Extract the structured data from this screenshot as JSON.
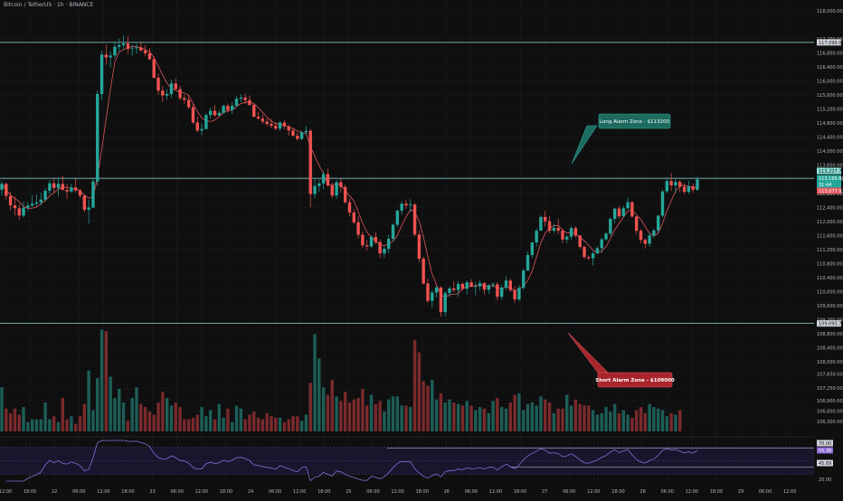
{
  "chart_data": {
    "type": "candlestick",
    "title": "Bitcoin / TetherUS · 1h · BINANCE",
    "colors": {
      "background": "#0f0f10",
      "up": "#26a69a",
      "down": "#ef5350",
      "volume_up": "#1d5e57",
      "volume_down": "#7a2a2c",
      "ma_line": "#e0565b",
      "zone_line": "#8fe0d8",
      "rsi_line": "#8c6bd8",
      "rsi_band": "#1b1630",
      "axis_text": "#b2b5be",
      "grid": "#1c1d22"
    },
    "price_axis": {
      "ylim": [
        106200,
        118100
      ],
      "ticks": [
        "118,000.00",
        "117,200.00",
        "116,800.00",
        "116,400.00",
        "116,000.00",
        "115,600.00",
        "115,200.00",
        "114,800.00",
        "114,400.00",
        "114,000.00",
        "113,600.00",
        "113,200.00",
        "112,800.00",
        "112,400.00",
        "112,000.00",
        "111,600.00",
        "111,200.00",
        "110,800.00",
        "110,400.00",
        "110,000.00",
        "109,600.00",
        "109,200.00",
        "108,800.00",
        "108,400.00",
        "108,000.00",
        "107,650.00",
        "107,250.00",
        "106,900.00",
        "106,600.00",
        "106,300.00"
      ]
    },
    "time_axis": {
      "ticks": [
        "12:00",
        "18:00",
        "22",
        "06:00",
        "12:00",
        "18:00",
        "23",
        "06:00",
        "12:00",
        "18:00",
        "24",
        "06:00",
        "12:00",
        "18:00",
        "25",
        "06:00",
        "12:00",
        "18:00",
        "26",
        "06:00",
        "12:00",
        "18:00",
        "27",
        "06:00",
        "12:00",
        "18:00",
        "28",
        "06:00",
        "12:00",
        "18:00",
        "29",
        "06:00",
        "12:00"
      ]
    },
    "zones": [
      {
        "price": 117099.01,
        "label": "117,099.01"
      },
      {
        "price": 113227.7,
        "label": "113,227.70"
      },
      {
        "price": 109093.76,
        "label": "109,093.76"
      }
    ],
    "price_labels": [
      {
        "price": 113227.7,
        "text": "113,227.70",
        "kind": "zone"
      },
      {
        "price": 112999,
        "text": "113,195.81",
        "kind": "last"
      },
      {
        "price": 112880,
        "text": "31:44",
        "kind": "timer"
      },
      {
        "price": 112677.97,
        "text": "113,077.97",
        "kind": "ma"
      }
    ],
    "annotations": [
      {
        "text": "Long Alarm Zone - $113200",
        "kind": "long"
      },
      {
        "text": "Short Alarm Zone - $109000",
        "kind": "short"
      }
    ],
    "ohlc": [
      [
        112901,
        113145,
        112733,
        113069
      ],
      [
        113069,
        113100,
        112620,
        112727
      ],
      [
        112727,
        112834,
        112317,
        112457
      ],
      [
        112457,
        112703,
        112168,
        112374
      ],
      [
        112374,
        112483,
        112040,
        112166
      ],
      [
        112166,
        112564,
        112106,
        112390
      ],
      [
        112390,
        112552,
        112286,
        112453
      ],
      [
        112453,
        112752,
        112413,
        112504
      ],
      [
        112504,
        112767,
        112440,
        112542
      ],
      [
        112542,
        112811,
        112445,
        112620
      ],
      [
        112620,
        112947,
        112554,
        112874
      ],
      [
        112874,
        113179,
        112776,
        113085
      ],
      [
        113085,
        113219,
        112821,
        112954
      ],
      [
        112954,
        113232,
        112716,
        113068
      ],
      [
        113068,
        113298,
        112932,
        112895
      ],
      [
        112895,
        113064,
        112642,
        112852
      ],
      [
        112852,
        113077,
        112818,
        112966
      ],
      [
        112966,
        113221,
        112831,
        112883
      ],
      [
        112883,
        112939,
        112671,
        112733
      ],
      [
        112733,
        112754,
        112255,
        112333
      ],
      [
        112333,
        112624,
        111935,
        112395
      ],
      [
        112395,
        113217,
        112378,
        113136
      ],
      [
        113136,
        115729,
        113012,
        115629
      ],
      [
        115629,
        116870,
        115445,
        116752
      ],
      [
        116752,
        117032,
        116462,
        116669
      ],
      [
        116669,
        116844,
        116387,
        116727
      ],
      [
        116727,
        117128,
        116643,
        116973
      ],
      [
        116973,
        117211,
        116826,
        117019
      ],
      [
        117019,
        117307,
        116882,
        117066
      ],
      [
        117066,
        117278,
        116772,
        116915
      ],
      [
        116915,
        117045,
        116724,
        116930
      ],
      [
        116930,
        117061,
        116776,
        116956
      ],
      [
        116956,
        117116,
        116833,
        116867
      ],
      [
        116867,
        117022,
        116702,
        116791
      ],
      [
        116791,
        116936,
        116587,
        116621
      ],
      [
        116621,
        116701,
        116063,
        116094
      ],
      [
        116094,
        116218,
        115609,
        115724
      ],
      [
        115724,
        115858,
        115410,
        115585
      ],
      [
        115585,
        115770,
        115474,
        115628
      ],
      [
        115628,
        116041,
        115518,
        115930
      ],
      [
        115930,
        116071,
        115758,
        115767
      ],
      [
        115767,
        115863,
        115455,
        115513
      ],
      [
        115513,
        115607,
        115344,
        115463
      ],
      [
        115463,
        115616,
        115201,
        115253
      ],
      [
        115253,
        115343,
        114771,
        114819
      ],
      [
        114819,
        114993,
        114544,
        114588
      ],
      [
        114588,
        114788,
        114462,
        114632
      ],
      [
        114632,
        115084,
        114614,
        115031
      ],
      [
        115031,
        115242,
        114929,
        115151
      ],
      [
        115151,
        115314,
        114976,
        115022
      ],
      [
        115022,
        115163,
        114991,
        115091
      ],
      [
        115091,
        115331,
        115044,
        115291
      ],
      [
        115291,
        115358,
        115104,
        115174
      ],
      [
        115174,
        115410,
        115069,
        115296
      ],
      [
        115296,
        115569,
        115255,
        115494
      ],
      [
        115494,
        115628,
        115397,
        115526
      ],
      [
        115526,
        115648,
        115349,
        115453
      ],
      [
        115453,
        115583,
        115298,
        115314
      ],
      [
        115314,
        115357,
        114963,
        114980
      ],
      [
        114980,
        115119,
        114895,
        114930
      ],
      [
        114930,
        115044,
        114786,
        114843
      ],
      [
        114843,
        114934,
        114703,
        114778
      ],
      [
        114778,
        114915,
        114653,
        114724
      ],
      [
        114724,
        114826,
        114598,
        114644
      ],
      [
        114644,
        114862,
        114579,
        114816
      ],
      [
        114816,
        114889,
        114619,
        114707
      ],
      [
        114707,
        114755,
        114447,
        114591
      ],
      [
        114591,
        114669,
        114412,
        114443
      ],
      [
        114443,
        114532,
        114305,
        114351
      ],
      [
        114351,
        114591,
        114313,
        114538
      ],
      [
        114538,
        114719,
        114461,
        114579
      ],
      [
        114579,
        114633,
        112408,
        112779
      ],
      [
        112779,
        113230,
        112650,
        113010
      ],
      [
        113010,
        113190,
        112849,
        113082
      ],
      [
        113082,
        113427,
        112912,
        113349
      ],
      [
        113349,
        113504,
        112975,
        113025
      ],
      [
        113025,
        113105,
        112666,
        112737
      ],
      [
        112737,
        113184,
        112636,
        113116
      ],
      [
        113116,
        113223,
        112822,
        112979
      ],
      [
        112979,
        113048,
        112510,
        112547
      ],
      [
        112547,
        112649,
        112143,
        112254
      ],
      [
        112254,
        112350,
        111925,
        111974
      ],
      [
        111974,
        112148,
        111508,
        111621
      ],
      [
        111621,
        111720,
        111239,
        111319
      ],
      [
        111319,
        111470,
        111167,
        111287
      ],
      [
        111287,
        111600,
        111253,
        111557
      ],
      [
        111557,
        111688,
        111349,
        111413
      ],
      [
        111413,
        111494,
        110960,
        111088
      ],
      [
        111088,
        111298,
        110961,
        111221
      ],
      [
        111221,
        111618,
        111091,
        111503
      ],
      [
        111503,
        111943,
        111420,
        111904
      ],
      [
        111904,
        112334,
        111851,
        112307
      ],
      [
        112307,
        112573,
        112185,
        112505
      ],
      [
        112505,
        112614,
        112358,
        112456
      ],
      [
        112456,
        112636,
        112272,
        112480
      ],
      [
        112480,
        112529,
        111577,
        111626
      ],
      [
        111626,
        111739,
        110838,
        110938
      ],
      [
        110938,
        110995,
        110198,
        110231
      ],
      [
        110231,
        110368,
        109676,
        109738
      ],
      [
        109738,
        110032,
        109550,
        109971
      ],
      [
        109971,
        110180,
        109830,
        110117
      ],
      [
        110117,
        110154,
        109289,
        109416
      ],
      [
        109416,
        110021,
        109304,
        109958
      ],
      [
        109958,
        110149,
        109846,
        110091
      ],
      [
        110091,
        110302,
        109981,
        110044
      ],
      [
        110044,
        110305,
        109851,
        110220
      ],
      [
        110220,
        110263,
        110038,
        110081
      ],
      [
        110081,
        110323,
        109925,
        110266
      ],
      [
        110266,
        110362,
        110124,
        110139
      ],
      [
        110139,
        110272,
        109894,
        110155
      ],
      [
        110155,
        110316,
        110044,
        110241
      ],
      [
        110241,
        110269,
        109913,
        110054
      ],
      [
        110054,
        110210,
        109931,
        110182
      ],
      [
        110182,
        110270,
        110116,
        110209
      ],
      [
        110209,
        110267,
        109747,
        109854
      ],
      [
        109854,
        110190,
        109775,
        110114
      ],
      [
        110114,
        110435,
        110034,
        110315
      ],
      [
        110315,
        110373,
        109988,
        110044
      ],
      [
        110044,
        110158,
        109676,
        109779
      ],
      [
        109779,
        110193,
        109722,
        110111
      ],
      [
        110111,
        110657,
        110050,
        110601
      ],
      [
        110601,
        111145,
        110590,
        111044
      ],
      [
        111044,
        111416,
        110954,
        111401
      ],
      [
        111401,
        111800,
        111293,
        111737
      ],
      [
        111737,
        112171,
        111729,
        112127
      ],
      [
        112127,
        112300,
        111863,
        112006
      ],
      [
        112006,
        112159,
        111660,
        111733
      ],
      [
        111733,
        111935,
        111675,
        111813
      ],
      [
        111813,
        112075,
        111631,
        111734
      ],
      [
        111734,
        111791,
        111383,
        111484
      ],
      [
        111484,
        111612,
        111382,
        111563
      ],
      [
        111563,
        111856,
        111482,
        111810
      ],
      [
        111810,
        111863,
        111541,
        111598
      ],
      [
        111598,
        111607,
        111227,
        111274
      ],
      [
        111274,
        111309,
        110931,
        110984
      ],
      [
        110984,
        111033,
        110906,
        110951
      ],
      [
        110951,
        111137,
        110750,
        111087
      ],
      [
        111087,
        111290,
        111078,
        111239
      ],
      [
        111239,
        111526,
        111100,
        111490
      ],
      [
        111490,
        111696,
        111447,
        111651
      ],
      [
        111651,
        112116,
        111590,
        112073
      ],
      [
        112073,
        112378,
        111949,
        112364
      ],
      [
        112364,
        112434,
        112082,
        112144
      ],
      [
        112144,
        112453,
        112138,
        112373
      ],
      [
        112373,
        112664,
        112342,
        112550
      ],
      [
        112550,
        112573,
        112108,
        112138
      ],
      [
        112138,
        112152,
        111638,
        111732
      ],
      [
        111732,
        111782,
        111379,
        111475
      ],
      [
        111475,
        111529,
        111228,
        111363
      ],
      [
        111363,
        111694,
        111285,
        111599
      ],
      [
        111599,
        111799,
        111527,
        111744
      ],
      [
        111744,
        112177,
        111657,
        112163
      ],
      [
        112163,
        112907,
        112113,
        112855
      ],
      [
        112855,
        113208,
        112811,
        113149
      ],
      [
        113149,
        113384,
        112866,
        113026
      ],
      [
        113026,
        113205,
        112817,
        113124
      ],
      [
        113124,
        113175,
        112838,
        112987
      ],
      [
        112987,
        113088,
        112779,
        112842
      ],
      [
        112842,
        113155,
        112784,
        112996
      ],
      [
        112996,
        113077,
        112825,
        112899
      ],
      [
        112899,
        113268,
        112869,
        113196
      ]
    ],
    "volume": [
      29,
      15,
      12,
      15,
      11,
      16,
      6,
      8,
      8,
      8,
      19,
      8,
      10,
      6,
      22,
      8,
      10,
      5,
      10,
      18,
      40,
      14,
      35,
      67,
      66,
      36,
      22,
      28,
      19,
      7,
      22,
      29,
      18,
      16,
      13,
      11,
      19,
      26,
      22,
      17,
      19,
      16,
      8,
      8,
      9,
      11,
      16,
      10,
      14,
      8,
      18,
      9,
      15,
      6,
      17,
      15,
      8,
      11,
      13,
      9,
      8,
      12,
      10,
      9,
      9,
      6,
      8,
      10,
      10,
      7,
      11,
      32,
      64,
      48,
      29,
      24,
      34,
      23,
      20,
      26,
      19,
      21,
      22,
      28,
      17,
      24,
      18,
      20,
      13,
      21,
      23,
      23,
      17,
      17,
      16,
      60,
      52,
      33,
      30,
      34,
      21,
      25,
      19,
      21,
      19,
      18,
      17,
      20,
      17,
      14,
      16,
      15,
      12,
      20,
      22,
      16,
      15,
      19,
      24,
      25,
      14,
      18,
      19,
      17,
      23,
      21,
      19,
      12,
      15,
      15,
      24,
      17,
      21,
      18,
      17,
      17,
      14,
      11,
      12,
      16,
      13,
      18,
      12,
      14,
      11,
      9,
      14,
      16,
      12,
      18,
      16,
      15,
      14,
      10,
      12,
      11,
      14
    ],
    "rsi": {
      "levels": [
        "70.00",
        "55.38",
        "45.69",
        "20.00"
      ],
      "ylim": [
        20,
        80
      ]
    }
  }
}
